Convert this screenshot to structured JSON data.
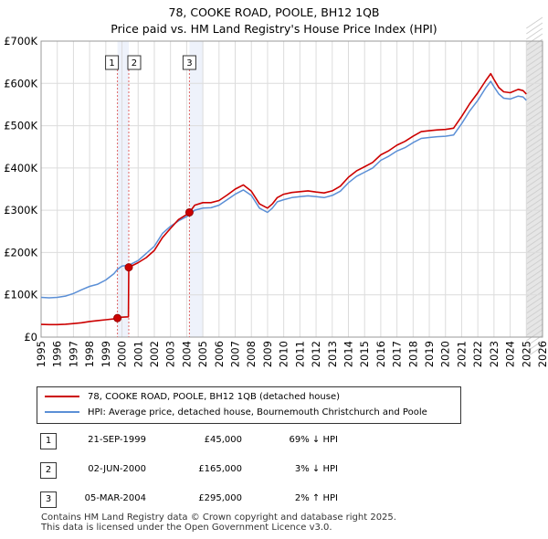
{
  "header": {
    "title": "78, COOKE ROAD, POOLE, BH12 1QB",
    "subtitle": "Price paid vs. HM Land Registry's House Price Index (HPI)"
  },
  "legend": {
    "items": [
      {
        "label": "78, COOKE ROAD, POOLE, BH12 1QB (detached house)",
        "color": "#cc0000"
      },
      {
        "label": "HPI: Average price, detached house, Bournemouth Christchurch and Poole",
        "color": "#5b8fd6"
      }
    ]
  },
  "sales": [
    {
      "num": "1",
      "date": "21-SEP-1999",
      "price": "£45,000",
      "delta": "69% ↓ HPI"
    },
    {
      "num": "2",
      "date": "02-JUN-2000",
      "price": "£165,000",
      "delta": "3% ↓ HPI"
    },
    {
      "num": "3",
      "date": "05-MAR-2004",
      "price": "£295,000",
      "delta": "2% ↑ HPI"
    }
  ],
  "footer": {
    "line1": "Contains HM Land Registry data © Crown copyright and database right 2025.",
    "line2": "This data is licensed under the Open Government Licence v3.0."
  },
  "chart_data": {
    "type": "line",
    "title": "78, COOKE ROAD, POOLE, BH12 1QB",
    "subtitle": "Price paid vs. HM Land Registry's House Price Index (HPI)",
    "xlabel": "",
    "ylabel": "",
    "xlim": [
      1995,
      2026
    ],
    "ylim": [
      0,
      700000
    ],
    "grid": true,
    "x_ticks": [
      "1995",
      "1996",
      "1997",
      "1998",
      "1999",
      "2000",
      "2001",
      "2002",
      "2003",
      "2004",
      "2005",
      "2006",
      "2007",
      "2008",
      "2009",
      "2010",
      "2011",
      "2012",
      "2013",
      "2014",
      "2015",
      "2016",
      "2017",
      "2018",
      "2019",
      "2020",
      "2021",
      "2022",
      "2023",
      "2024",
      "2025",
      "2026"
    ],
    "y_ticks": [
      {
        "value": 0,
        "label": "£0"
      },
      {
        "value": 100000,
        "label": "£100K"
      },
      {
        "value": 200000,
        "label": "£200K"
      },
      {
        "value": 300000,
        "label": "£300K"
      },
      {
        "value": 400000,
        "label": "£400K"
      },
      {
        "value": 500000,
        "label": "£500K"
      },
      {
        "value": 600000,
        "label": "£600K"
      },
      {
        "value": 700000,
        "label": "£700K"
      }
    ],
    "shaded_regions": [
      {
        "from": 1999.72,
        "to": 2000.42,
        "color": "#eef2fb"
      },
      {
        "from": 2004.17,
        "to": 2005.0,
        "color": "#eef2fb"
      },
      {
        "from": 2025.0,
        "to": 2026.0,
        "color": "#e6e6e6"
      }
    ],
    "series": [
      {
        "name": "HPI: Average price, detached house, Bournemouth Christchurch and Poole",
        "color": "#5b8fd6",
        "x": [
          1995,
          1995.5,
          1996,
          1996.5,
          1997,
          1997.5,
          1998,
          1998.5,
          1999,
          1999.5,
          1999.72,
          2000,
          2000.42,
          2001,
          2001.5,
          2002,
          2002.5,
          2003,
          2003.5,
          2004,
          2004.17,
          2004.5,
          2005,
          2005.5,
          2006,
          2006.5,
          2007,
          2007.5,
          2008,
          2008.5,
          2009,
          2009.3,
          2009.6,
          2010,
          2010.5,
          2011,
          2011.5,
          2012,
          2012.5,
          2013,
          2013.5,
          2014,
          2014.5,
          2015,
          2015.5,
          2016,
          2016.5,
          2017,
          2017.5,
          2018,
          2018.5,
          2019,
          2019.5,
          2020,
          2020.5,
          2021,
          2021.5,
          2022,
          2022.5,
          2022.8,
          2023,
          2023.3,
          2023.6,
          2024,
          2024.5,
          2024.8,
          2025
        ],
        "values": [
          94000,
          93000,
          94000,
          97000,
          103000,
          112000,
          120000,
          125000,
          135000,
          150000,
          160000,
          168000,
          170000,
          181000,
          198000,
          215000,
          245000,
          262000,
          275000,
          285000,
          289000,
          300000,
          305000,
          306000,
          312000,
          325000,
          338000,
          348000,
          335000,
          305000,
          295000,
          305000,
          320000,
          325000,
          330000,
          332000,
          334000,
          332000,
          330000,
          335000,
          345000,
          365000,
          380000,
          390000,
          400000,
          418000,
          428000,
          440000,
          448000,
          460000,
          470000,
          472000,
          474000,
          475000,
          478000,
          505000,
          535000,
          560000,
          590000,
          605000,
          592000,
          575000,
          565000,
          563000,
          570000,
          568000,
          560000
        ]
      },
      {
        "name": "78, COOKE ROAD, POOLE, BH12 1QB (detached house)",
        "color": "#cc0000",
        "x": [
          1995,
          1995.5,
          1996,
          1996.5,
          1997,
          1997.5,
          1998,
          1998.5,
          1999,
          1999.5,
          1999.72,
          2000,
          2000.4,
          2000.42,
          2001,
          2001.5,
          2002,
          2002.5,
          2003,
          2003.5,
          2004,
          2004.17,
          2004.5,
          2005,
          2005.5,
          2006,
          2006.5,
          2007,
          2007.5,
          2008,
          2008.5,
          2009,
          2009.3,
          2009.6,
          2010,
          2010.5,
          2011,
          2011.5,
          2012,
          2012.5,
          2013,
          2013.5,
          2014,
          2014.5,
          2015,
          2015.5,
          2016,
          2016.5,
          2017,
          2017.5,
          2018,
          2018.5,
          2019,
          2019.5,
          2020,
          2020.5,
          2021,
          2021.5,
          2022,
          2022.5,
          2022.8,
          2023,
          2023.3,
          2023.6,
          2024,
          2024.5,
          2024.8,
          2025
        ],
        "values": [
          30000,
          29500,
          29500,
          30500,
          32000,
          34000,
          37000,
          39000,
          41000,
          43000,
          45000,
          47000,
          48000,
          165000,
          176000,
          188000,
          205000,
          235000,
          257000,
          278000,
          290000,
          295000,
          312000,
          318000,
          318000,
          323000,
          336000,
          350000,
          360000,
          345000,
          315000,
          305000,
          315000,
          330000,
          338000,
          342000,
          344000,
          346000,
          343000,
          341000,
          346000,
          357000,
          378000,
          393000,
          403000,
          413000,
          431000,
          441000,
          454000,
          463000,
          475000,
          486000,
          488000,
          490000,
          491000,
          494000,
          522000,
          552000,
          578000,
          607000,
          623000,
          609000,
          590000,
          580000,
          578000,
          586000,
          583000,
          575000
        ]
      }
    ],
    "sale_markers": [
      {
        "label": "1",
        "x": 1999.72,
        "y": 45000
      },
      {
        "label": "2",
        "x": 2000.42,
        "y": 165000
      },
      {
        "label": "3",
        "x": 2004.17,
        "y": 295000
      }
    ]
  }
}
